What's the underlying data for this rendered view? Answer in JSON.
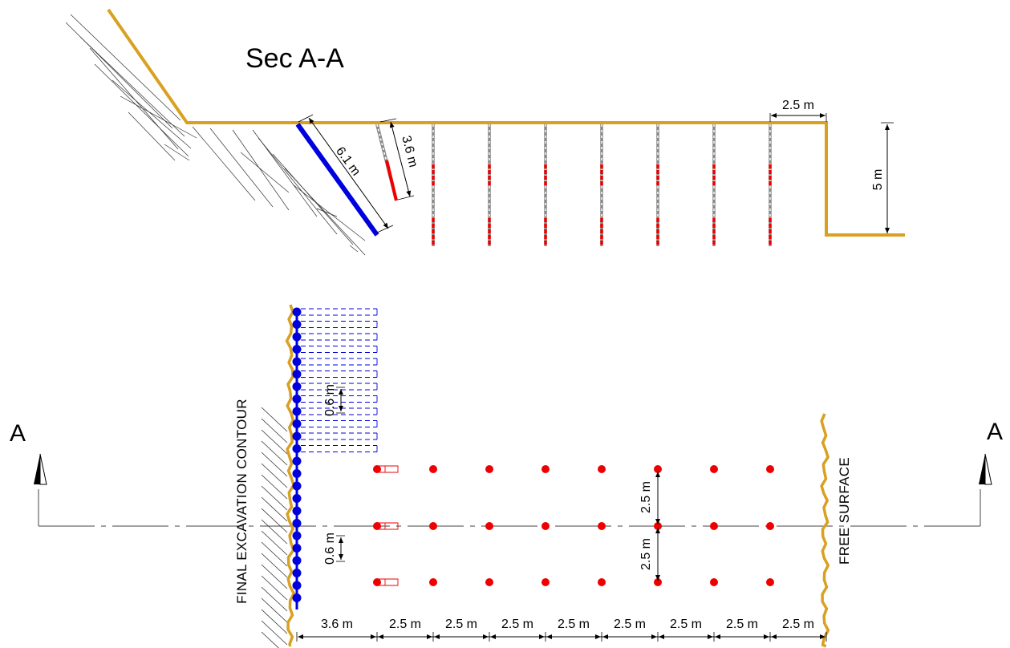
{
  "section_title": "Sec A-A",
  "section_marker": "A",
  "labels": {
    "final_contour": "FINAL EXCAVATION CONTOUR",
    "free_surface": "FREE SURFACE"
  },
  "section_dims": {
    "inclined_long": "6.1 m",
    "inclined_short": "3.6 m",
    "top_spacing": "2.5 m",
    "bench_height": "5 m"
  },
  "plan_dims": {
    "presplit_upper": "0.6 m",
    "presplit_lower": "0.6 m",
    "row_spacing_upper": "2.5 m",
    "row_spacing_lower": "2.5 m",
    "bottom": [
      "3.6 m",
      "2.5 m",
      "2.5 m",
      "2.5 m",
      "2.5 m",
      "2.5 m",
      "2.5 m",
      "2.5 m",
      "2.5 m"
    ]
  },
  "colors": {
    "contour": "#d9a021",
    "presplit": "#0000dd",
    "production": "#ee0000"
  }
}
